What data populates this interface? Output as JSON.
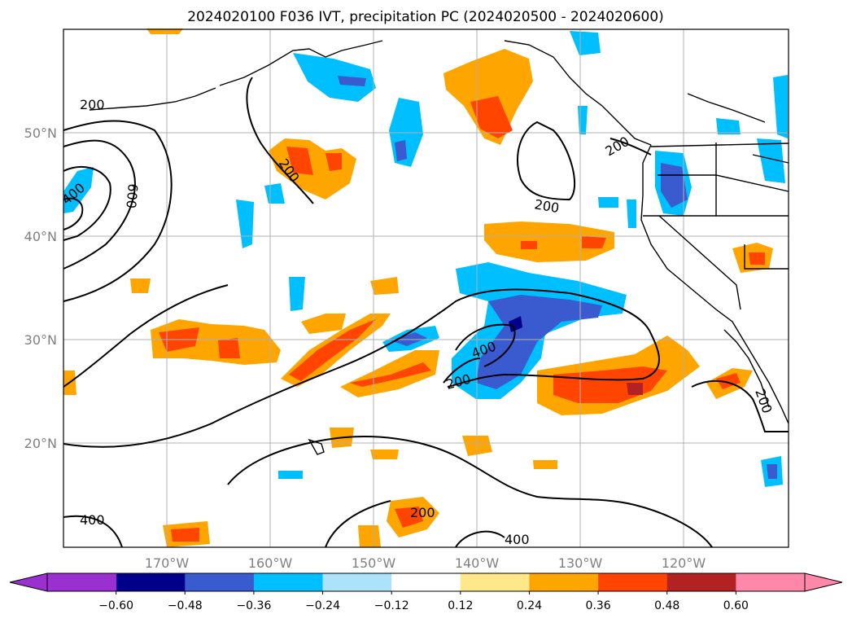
{
  "title": "2024020100 F036 IVT, precipitation PC (2024020500 - 2024020600)",
  "map": {
    "lat_labels": [
      "50°N",
      "40°N",
      "30°N",
      "20°N"
    ],
    "lon_labels": [
      "170°W",
      "160°W",
      "150°W",
      "140°W",
      "130°W",
      "120°W"
    ],
    "contour_labels": [
      "200",
      "200",
      "200",
      "200",
      "200",
      "200",
      "200",
      "400",
      "400",
      "400",
      "400",
      "600"
    ]
  },
  "colorbar": {
    "tick_labels": [
      "−0.60",
      "−0.48",
      "−0.36",
      "−0.24",
      "−0.12",
      "0.12",
      "0.24",
      "0.36",
      "0.48",
      "0.60"
    ],
    "colors": [
      "#9b30d0",
      "#00008b",
      "#3a5bd0",
      "#00bfff",
      "#ade3fa",
      "#ffffff",
      "#ffe88a",
      "#ffa500",
      "#ff4500",
      "#b22222",
      "#ff88aa"
    ]
  }
}
